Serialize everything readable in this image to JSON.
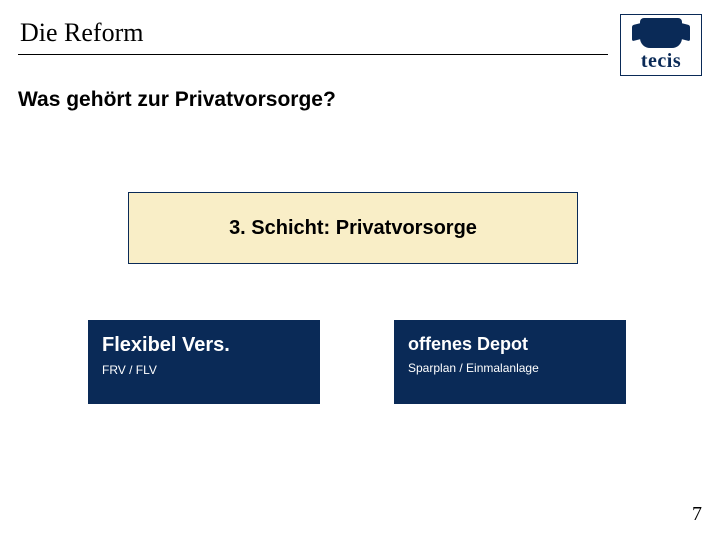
{
  "header": {
    "title": "Die Reform",
    "logo_text": "tecis"
  },
  "subtitle": "Was gehört zur Privatvorsorge?",
  "layer_box": {
    "label": "3. Schicht: Privatvorsorge",
    "bg_color": "#f9eec7",
    "border_color": "#0a2a57",
    "title_fontsize": 20
  },
  "cards": {
    "left": {
      "title": "Flexibel Vers.",
      "subtitle": "FRV / FLV",
      "bg_color": "#0a2a57",
      "text_color": "#ffffff"
    },
    "right": {
      "title": "offenes Depot",
      "subtitle": "Sparplan /  Einmalanlage",
      "bg_color": "#0a2a57",
      "text_color": "#ffffff"
    }
  },
  "page_number": "7",
  "colors": {
    "brand_navy": "#0a2a57",
    "background": "#ffffff"
  }
}
